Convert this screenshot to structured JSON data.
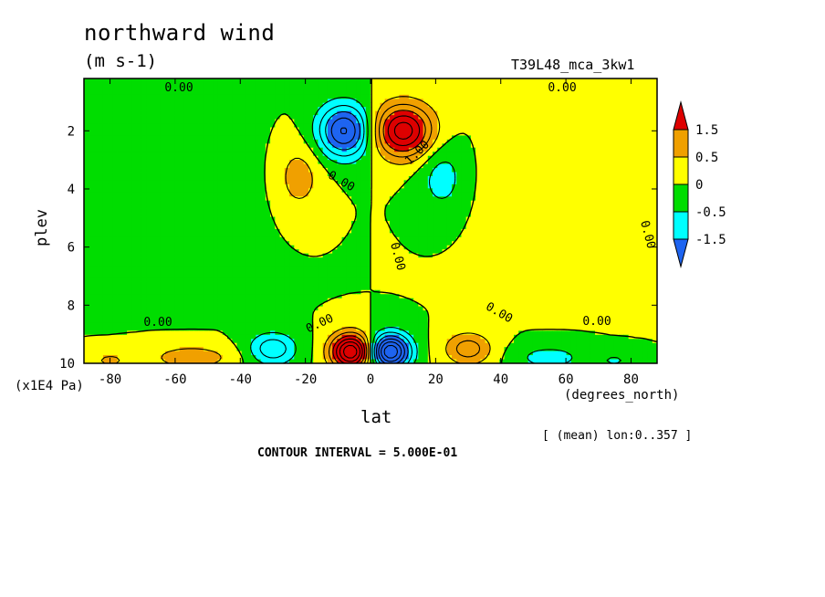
{
  "chart_data": {
    "type": "heatmap",
    "title": "northward wind",
    "units": "(m s-1)",
    "run_id": "T39L48_mca_3kw1",
    "xlabel": "lat",
    "xlabel_units": "(degrees_north)",
    "ylabel": "plev",
    "ylabel_units": "(x1E4 Pa)",
    "average_note": "[ (mean) lon:0..357 ]",
    "contour_interval_text": "CONTOUR INTERVAL = 5.000E-01",
    "xlim": [
      -88,
      88
    ],
    "ylim": [
      0.2,
      10
    ],
    "y_inverted": true,
    "x_ticks": [
      "-80",
      "-60",
      "-40",
      "-20",
      "0",
      "20",
      "40",
      "60",
      "80"
    ],
    "x_tick_values": [
      -80,
      -60,
      -40,
      -20,
      0,
      20,
      40,
      60,
      80
    ],
    "y_ticks": [
      "2",
      "4",
      "6",
      "8",
      "10"
    ],
    "y_tick_values": [
      2,
      4,
      6,
      8,
      10
    ],
    "colorbar": {
      "labels": [
        "1.5",
        "0.5",
        "0",
        "-0.5",
        "-1.5"
      ],
      "thresholds": [
        1.5,
        0.5,
        0,
        -0.5,
        -1.5
      ],
      "colors": [
        "#dd0000",
        "#f0a000",
        "#ffff00",
        "#00dd00",
        "#00ffff",
        "#1e64f0"
      ]
    },
    "contour_labels": [
      "0.00",
      "0.00",
      "0.00",
      "0.00",
      "0.00",
      "1.00",
      "0.00",
      "0.00",
      "0.00",
      "0.00"
    ],
    "features": [
      {
        "lat": -8,
        "plev": 2.0,
        "amplitude": -2.6,
        "width_lat": 8,
        "width_plev": 0.9
      },
      {
        "lat": 10,
        "plev": 2.0,
        "amplitude": 2.8,
        "width_lat": 9,
        "width_plev": 0.9
      },
      {
        "lat": -22,
        "plev": 3.6,
        "amplitude": 0.75,
        "width_lat": 7,
        "width_plev": 1.2
      },
      {
        "lat": 22,
        "plev": 3.6,
        "amplitude": -0.75,
        "width_lat": 7,
        "width_plev": 1.2
      },
      {
        "lat": -6,
        "plev": 9.6,
        "amplitude": 3.5,
        "width_lat": 6,
        "width_plev": 0.6
      },
      {
        "lat": 6,
        "plev": 9.6,
        "amplitude": -3.5,
        "width_lat": 6,
        "width_plev": 0.6
      },
      {
        "lat": -30,
        "plev": 9.5,
        "amplitude": -1.4,
        "width_lat": 7,
        "width_plev": 0.55
      },
      {
        "lat": 30,
        "plev": 9.5,
        "amplitude": 1.3,
        "width_lat": 7,
        "width_plev": 0.55
      },
      {
        "lat": -55,
        "plev": 9.8,
        "amplitude": 0.9,
        "width_lat": 12,
        "width_plev": 0.4
      },
      {
        "lat": 55,
        "plev": 9.8,
        "amplitude": -0.8,
        "width_lat": 10,
        "width_plev": 0.4
      },
      {
        "lat": -80,
        "plev": 9.9,
        "amplitude": 0.6,
        "width_lat": 6,
        "width_plev": 0.3
      },
      {
        "lat": 75,
        "plev": 9.9,
        "amplitude": -0.55,
        "width_lat": 6,
        "width_plev": 0.3
      },
      {
        "lat": -55,
        "plev": 4.0,
        "amplitude": -0.3,
        "width_lat": 20,
        "width_plev": 2.2
      },
      {
        "lat": 55,
        "plev": 4.0,
        "amplitude": 0.3,
        "width_lat": 20,
        "width_plev": 2.2
      }
    ]
  }
}
